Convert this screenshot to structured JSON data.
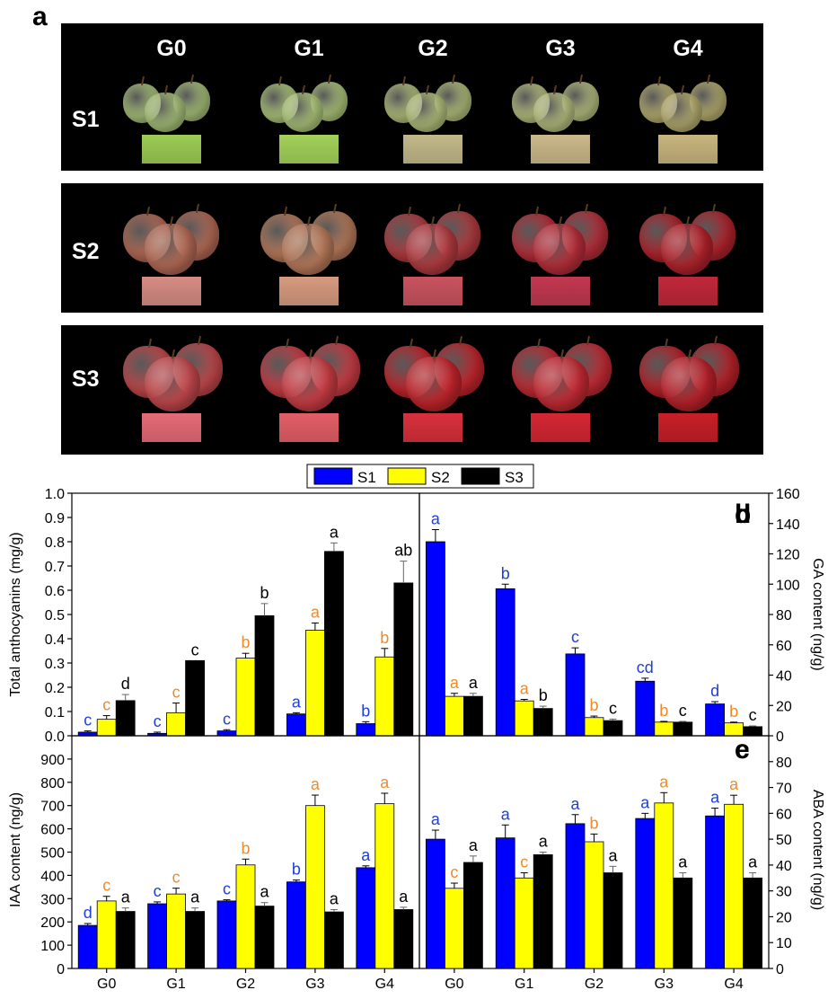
{
  "figure": {
    "panel_a_label": "a",
    "columns": [
      "G0",
      "G1",
      "G2",
      "G3",
      "G4"
    ],
    "rows": [
      {
        "label": "S1",
        "apple_colors": [
          "#a9c47a",
          "#b0c97c",
          "#b5c27d",
          "#b9c281",
          "#b9b071"
        ],
        "swatch_colors": [
          "#9ccc55",
          "#a3d15a",
          "#c2b98a",
          "#cbb98a",
          "#c8b57e"
        ]
      },
      {
        "label": "S2",
        "apple_colors": [
          "#b46a55",
          "#b87a5a",
          "#b23b40",
          "#b72e3a",
          "#b2232c"
        ],
        "swatch_colors": [
          "#d58c83",
          "#d69a7f",
          "#c9535f",
          "#c23850",
          "#c0283a"
        ]
      },
      {
        "label": "S3",
        "apple_colors": [
          "#c0474b",
          "#c83c44",
          "#c0252c",
          "#c22a34",
          "#b8212a"
        ],
        "swatch_colors": [
          "#e56b76",
          "#e35e66",
          "#d8303c",
          "#d42733",
          "#c81f27"
        ]
      }
    ]
  },
  "legend": {
    "items": [
      {
        "name": "S1",
        "color": "#0000ff"
      },
      {
        "name": "S2",
        "color": "#ffff00"
      },
      {
        "name": "S3",
        "color": "#000000"
      }
    ]
  },
  "chart_data": [
    {
      "panel": "b",
      "type": "bar",
      "categories": [
        "G0",
        "G1",
        "G2",
        "G3",
        "G4"
      ],
      "ylabel": "Total anthocyanins (mg/g)",
      "ylim": [
        0,
        1.0
      ],
      "yticks": [
        "0.0",
        "0.1",
        "0.2",
        "0.3",
        "0.4",
        "0.5",
        "0.6",
        "0.7",
        "0.8",
        "0.9",
        "1.0"
      ],
      "series": [
        {
          "name": "S1",
          "values": [
            0.015,
            0.01,
            0.02,
            0.09,
            0.05
          ],
          "errors": [
            0.005,
            0.005,
            0.005,
            0.005,
            0.008
          ],
          "letters": [
            "c",
            "c",
            "c",
            "a",
            "b"
          ],
          "letter_color": "#1f3fd6"
        },
        {
          "name": "S2",
          "values": [
            0.068,
            0.095,
            0.32,
            0.435,
            0.325
          ],
          "errors": [
            0.015,
            0.04,
            0.02,
            0.03,
            0.035
          ],
          "letters": [
            "c",
            "c",
            "b",
            "a",
            "b"
          ],
          "letter_color": "#f08a2a"
        },
        {
          "name": "S3",
          "values": [
            0.145,
            0.31,
            0.495,
            0.76,
            0.63
          ],
          "errors": [
            0.025,
            0.0,
            0.05,
            0.035,
            0.09
          ],
          "letters": [
            "d",
            "c",
            "b",
            "a",
            "ab"
          ],
          "letter_color": "#000000"
        }
      ]
    },
    {
      "panel": "d",
      "type": "bar",
      "categories": [
        "G0",
        "G1",
        "G2",
        "G3",
        "G4"
      ],
      "ylabel": "GA content (ng/g)",
      "ylim": [
        0,
        160
      ],
      "yticks": [
        "0",
        "20",
        "40",
        "60",
        "80",
        "100",
        "120",
        "140",
        "160"
      ],
      "series": [
        {
          "name": "S1",
          "values": [
            128,
            97,
            54,
            36,
            21
          ],
          "errors": [
            8,
            3,
            4,
            2,
            1.5
          ],
          "letters": [
            "a",
            "b",
            "c",
            "cd",
            "d"
          ],
          "letter_color": "#1f3fd6"
        },
        {
          "name": "S2",
          "values": [
            26,
            23,
            12,
            9,
            8.5
          ],
          "errors": [
            2,
            1,
            1,
            0.5,
            0.5
          ],
          "letters": [
            "a",
            "a",
            "b",
            "b",
            "b"
          ],
          "letter_color": "#f08a2a"
        },
        {
          "name": "S3",
          "values": [
            26,
            18,
            10,
            9,
            6
          ],
          "errors": [
            2,
            1.5,
            1,
            0.5,
            0.5
          ],
          "letters": [
            "a",
            "b",
            "c",
            "c",
            "c"
          ],
          "letter_color": "#000000"
        }
      ]
    },
    {
      "panel": "c",
      "type": "bar",
      "categories": [
        "G0",
        "G1",
        "G2",
        "G3",
        "G4"
      ],
      "ylabel": "IAA content (ng/g)",
      "ylim": [
        0,
        1000
      ],
      "yticks": [
        "0",
        "100",
        "200",
        "300",
        "400",
        "500",
        "600",
        "700",
        "800",
        "900"
      ],
      "series": [
        {
          "name": "S1",
          "values": [
            185,
            278,
            290,
            372,
            433
          ],
          "errors": [
            8,
            8,
            5,
            8,
            8
          ],
          "letters": [
            "d",
            "c",
            "c",
            "b",
            "a"
          ],
          "letter_color": "#1f3fd6"
        },
        {
          "name": "S2",
          "values": [
            290,
            320,
            445,
            700,
            708
          ],
          "errors": [
            20,
            25,
            25,
            45,
            45
          ],
          "letters": [
            "c",
            "c",
            "b",
            "a",
            "a"
          ],
          "letter_color": "#f08a2a"
        },
        {
          "name": "S3",
          "values": [
            245,
            245,
            268,
            243,
            253
          ],
          "errors": [
            15,
            15,
            15,
            10,
            10
          ],
          "letters": [
            "a",
            "a",
            "a",
            "a",
            "a"
          ],
          "letter_color": "#000000"
        }
      ]
    },
    {
      "panel": "e",
      "type": "bar",
      "categories": [
        "G0",
        "G1",
        "G2",
        "G3",
        "G4"
      ],
      "ylabel": "ABA content (ng/g)",
      "ylim": [
        0,
        90
      ],
      "yticks": [
        "0",
        "10",
        "20",
        "30",
        "40",
        "50",
        "60",
        "70",
        "80"
      ],
      "series": [
        {
          "name": "S1",
          "values": [
            50,
            50.5,
            56,
            58,
            59
          ],
          "errors": [
            3.5,
            5,
            3.5,
            2,
            3
          ],
          "letters": [
            "a",
            "a",
            "a",
            "a",
            "a"
          ],
          "letter_color": "#1f3fd6"
        },
        {
          "name": "S2",
          "values": [
            31,
            35,
            49,
            64,
            63.5
          ],
          "errors": [
            2,
            2,
            3,
            4,
            3.5
          ],
          "letters": [
            "c",
            "c",
            "b",
            "a",
            "a"
          ],
          "letter_color": "#f08a2a"
        },
        {
          "name": "S3",
          "values": [
            41,
            44,
            37,
            35,
            35
          ],
          "errors": [
            2.5,
            1,
            2.5,
            2,
            2
          ],
          "letters": [
            "a",
            "a",
            "a",
            "a",
            "a"
          ],
          "letter_color": "#000000"
        }
      ]
    }
  ]
}
